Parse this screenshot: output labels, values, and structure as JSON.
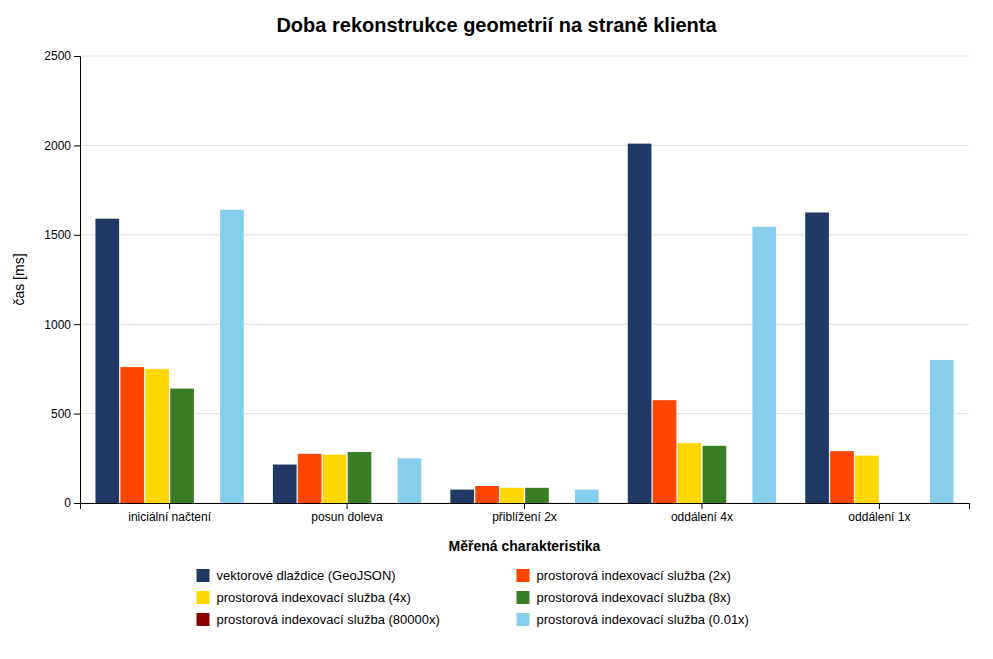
{
  "chart_data": {
    "type": "bar",
    "title": "Doba rekonstrukce geometrií na straně klienta",
    "x_label": "Měřená charakteristika",
    "y_label": "čas [ms]",
    "categories": [
      "iniciální načtení",
      "posun doleva",
      "přiblížení 2x",
      "oddálení 4x",
      "oddálení 1x"
    ],
    "series": [
      {
        "name": "vektorové dlaždice (GeoJSON)",
        "color": "#1F3864",
        "values": [
          1590,
          215,
          75,
          2010,
          1625
        ]
      },
      {
        "name": "prostorová indexovací služba (2x)",
        "color": "#FF4500",
        "values": [
          760,
          275,
          95,
          575,
          290
        ]
      },
      {
        "name": "prostorová indexovací služba (4x)",
        "color": "#FFD700",
        "values": [
          750,
          270,
          85,
          335,
          265
        ]
      },
      {
        "name": "prostorová indexovací služba (8x)",
        "color": "#3A7D27",
        "values": [
          640,
          285,
          85,
          320,
          0
        ]
      },
      {
        "name": "prostorová indexovací služba (80000x)",
        "color": "#8B0000",
        "values": [
          0,
          0,
          0,
          0,
          0
        ]
      },
      {
        "name": "prostorová indexovací služba (0.01x)",
        "color": "#87CEEB",
        "values": [
          1640,
          250,
          75,
          1545,
          800
        ]
      }
    ],
    "ylim": [
      0,
      2500
    ],
    "yticks": [
      0,
      500,
      1000,
      1500,
      2000,
      2500
    ],
    "grid": true,
    "legend": "bottom"
  }
}
